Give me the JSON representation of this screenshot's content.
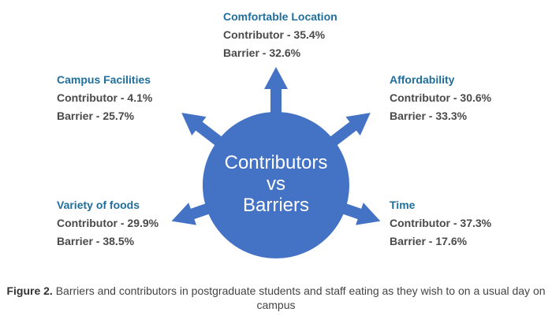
{
  "center": {
    "lines": [
      "Contributors",
      "vs",
      "Barriers"
    ]
  },
  "colors": {
    "circle": "#4472c4",
    "title": "#1f6e9c",
    "text": "#4a4a4a"
  },
  "items": [
    {
      "title": "Comfortable Location",
      "contributor": "Contributor - 35.4%",
      "barrier": "Barrier - 32.6%"
    },
    {
      "title": "Campus Facilities",
      "contributor": "Contributor - 4.1%",
      "barrier": "Barrier - 25.7%"
    },
    {
      "title": "Affordability",
      "contributor": "Contributor - 30.6%",
      "barrier": "Barrier - 33.3%"
    },
    {
      "title": "Variety of foods",
      "contributor": "Contributor - 29.9%",
      "barrier": "Barrier - 38.5%"
    },
    {
      "title": "Time",
      "contributor": "Contributor - 37.3%",
      "barrier": "Barrier - 17.6%"
    }
  ],
  "caption": {
    "label": "Figure 2.",
    "text": " Barriers and contributors in postgraduate students and staff eating as they wish to on a usual day on campus"
  }
}
